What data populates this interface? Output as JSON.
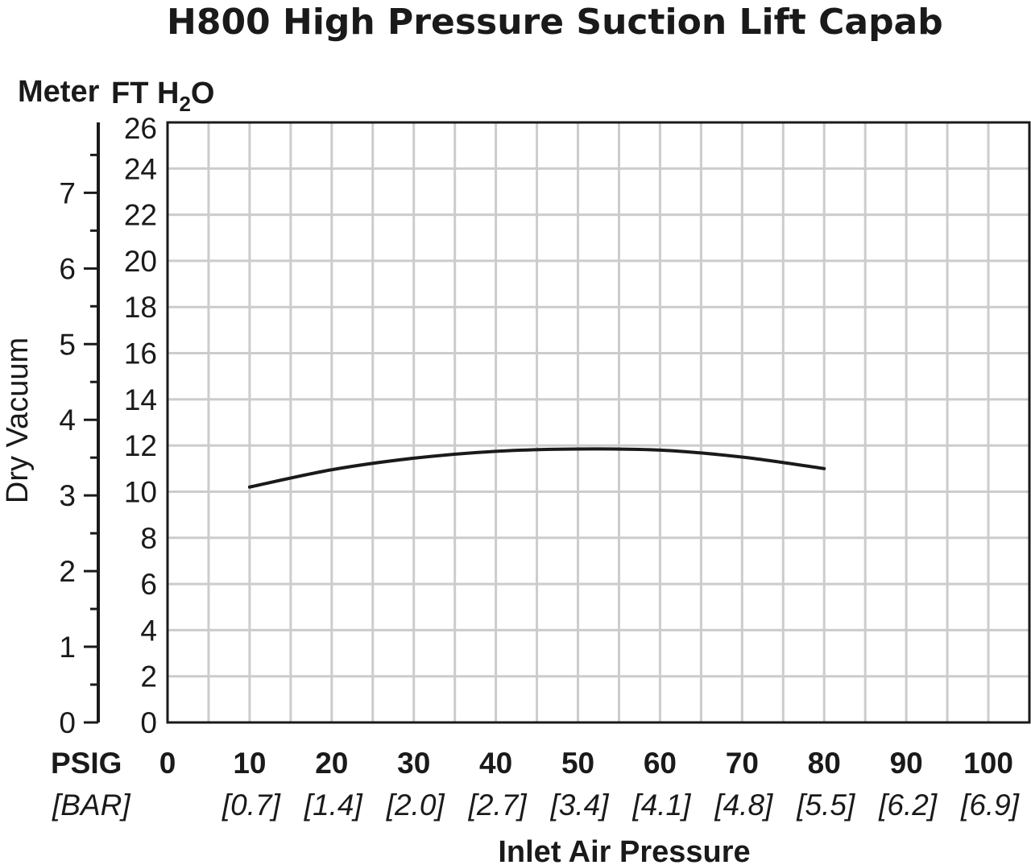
{
  "chart_data": {
    "type": "line",
    "title": "H800 High Pressure Suction Lift Capab",
    "xlabel": "Inlet Air Pressure",
    "ylabel": "Dry Vacuum",
    "x_unit_label": "PSIG",
    "x_alt_unit_label": "[BAR]",
    "y_left_unit_label": "Meter",
    "y_right_unit_label": "FT H",
    "y_right_unit_subscript": "2",
    "y_right_unit_suffix": "O",
    "xlim": [
      0,
      105
    ],
    "ylim": [
      0,
      26
    ],
    "ylim_meter": [
      0,
      7.93
    ],
    "x_ticks": [
      0,
      10,
      20,
      30,
      40,
      50,
      60,
      70,
      80,
      90,
      100
    ],
    "x_alt_ticks": [
      "[0.7]",
      "[1.4]",
      "[2.0]",
      "[2.7]",
      "[3.4]",
      "[4.1]",
      "[4.8]",
      "[5.5]",
      "[6.2]",
      "[6.9]"
    ],
    "y_ticks": [
      0,
      2,
      4,
      6,
      8,
      10,
      12,
      14,
      16,
      18,
      20,
      22,
      24,
      26
    ],
    "y_meter_ticks": [
      0,
      1,
      2,
      3,
      4,
      5,
      6,
      7
    ],
    "grid": true,
    "series": [
      {
        "x": [
          10,
          20,
          30,
          40,
          50,
          60,
          70,
          80
        ],
        "y": [
          10.2,
          10.95,
          11.45,
          11.75,
          11.85,
          11.8,
          11.5,
          11.0
        ]
      }
    ],
    "colors": {
      "line": "#1a1a1a",
      "grid": "#cccccc",
      "frame": "#1a1a1a"
    }
  }
}
